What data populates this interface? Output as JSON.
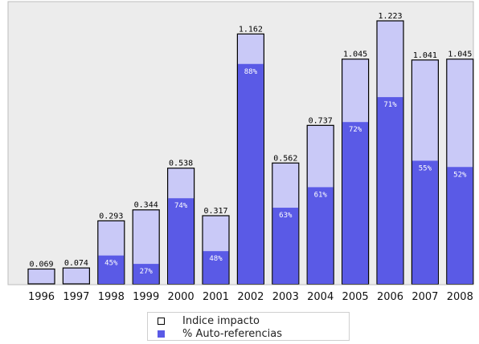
{
  "chart_data": {
    "type": "bar",
    "categories": [
      "1996",
      "1997",
      "1998",
      "1999",
      "2000",
      "2001",
      "2002",
      "2003",
      "2004",
      "2005",
      "2006",
      "2007",
      "2008"
    ],
    "series": [
      {
        "name": "Indice impacto",
        "values": [
          0.069,
          0.074,
          0.293,
          0.344,
          0.538,
          0.317,
          1.162,
          0.562,
          0.737,
          1.045,
          1.223,
          1.041,
          1.045
        ]
      },
      {
        "name": "% Auto-referencias",
        "values": [
          null,
          null,
          45,
          27,
          74,
          48,
          88,
          63,
          61,
          72,
          71,
          55,
          52
        ]
      }
    ],
    "value_labels": [
      "0.069",
      "0.074",
      "0.293",
      "0.344",
      "0.538",
      "0.317",
      "1.162",
      "0.562",
      "0.737",
      "1.045",
      "1.223",
      "1.041",
      "1.045"
    ],
    "percent_labels": [
      "",
      "",
      "45%",
      "27%",
      "74%",
      "48%",
      "88%",
      "63%",
      "61%",
      "72%",
      "71%",
      "55%",
      "52%"
    ],
    "title": "",
    "xlabel": "",
    "ylabel": "",
    "ylim": [
      0,
      1.223
    ],
    "grid": false,
    "legend_position": "bottom-center",
    "colors": {
      "outer_fill": "#c9c9f7",
      "inner_fill": "#5a5ae6",
      "outline": "#000000",
      "plot_bg": "#ececec"
    }
  },
  "legend": {
    "items": [
      {
        "label": "Indice impacto"
      },
      {
        "label": "% Auto-referencias"
      }
    ]
  }
}
